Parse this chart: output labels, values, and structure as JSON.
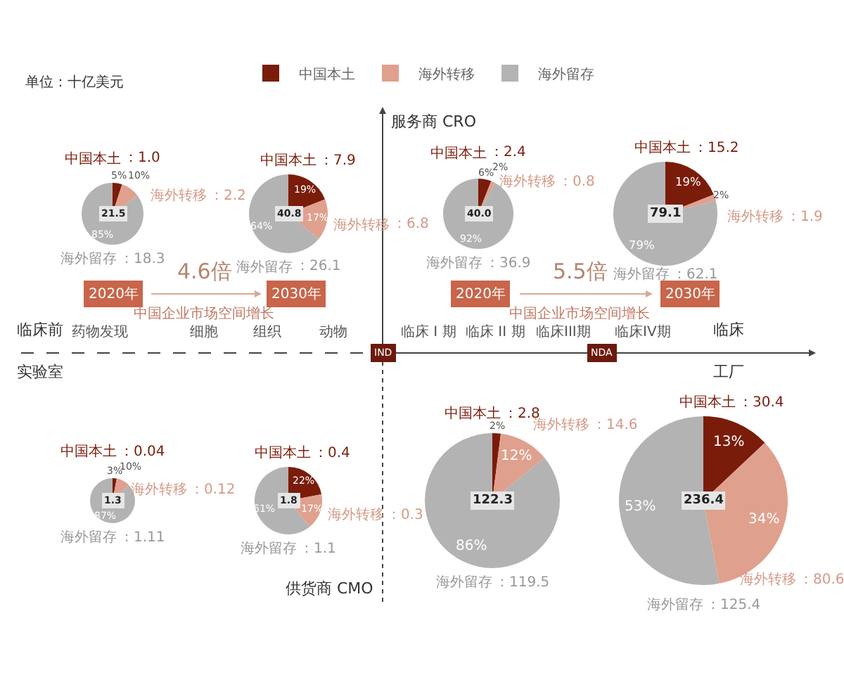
{
  "chart_data": [
    {
      "type": "other",
      "title": "单位：十亿美元",
      "annotations": [
        "服务商 CRO",
        "供货商 CMO",
        "临床前",
        "实验室",
        "临床",
        "工厂",
        "药物发现",
        "细胞",
        "组织",
        "动物",
        "临床 I 期",
        "临床 II 期",
        "临床III期",
        "临床IV期",
        "2020年",
        "2030年",
        "4.6倍",
        "中国企业市场空间增长",
        "2020年",
        "2030年",
        "5.5倍",
        "中国企业市场空间增长",
        "IND",
        "NDA"
      ]
    },
    {
      "type": "pie",
      "categories": [
        "中国本土",
        "海外转移",
        "海外留存"
      ],
      "values": [
        5,
        10,
        85
      ],
      "colors": [
        "#7a1c0a",
        "#e0a08e",
        "#b3b3b3"
      ],
      "value_labels": [
        "5%",
        "10%",
        "85%"
      ],
      "annotations": [
        "21.5",
        "：1.0",
        "：2.2",
        "：18.3"
      ],
      "legend": "top"
    },
    {
      "type": "pie",
      "categories": [
        "中国本土",
        "海外转移",
        "海外留存"
      ],
      "values": [
        19,
        17,
        64
      ],
      "colors": [
        "#7a1c0a",
        "#e0a08e",
        "#b3b3b3"
      ],
      "value_labels": [
        "19%",
        "17%",
        "64%"
      ],
      "annotations": [
        "40.8",
        "：7.9",
        "：6.8",
        "：26.1"
      ]
    },
    {
      "type": "pie",
      "categories": [
        "中国本土",
        "海外转移",
        "海外留存"
      ],
      "values": [
        6,
        2,
        92
      ],
      "colors": [
        "#7a1c0a",
        "#e0a08e",
        "#b3b3b3"
      ],
      "value_labels": [
        "6%",
        "2%",
        "92%"
      ],
      "annotations": [
        "40.0",
        "：2.4",
        "：0.8",
        "：36.9"
      ]
    },
    {
      "type": "pie",
      "categories": [
        "中国本土",
        "海外转移",
        "海外留存"
      ],
      "values": [
        19,
        2,
        79
      ],
      "colors": [
        "#7a1c0a",
        "#e0a08e",
        "#b3b3b3"
      ],
      "value_labels": [
        "19%",
        "2%",
        "79%"
      ],
      "annotations": [
        "79.1",
        "：15.2",
        "：1.9",
        "：62.1"
      ]
    },
    {
      "type": "pie",
      "categories": [
        "中国本土",
        "海外转移",
        "海外留存"
      ],
      "values": [
        3,
        10,
        87
      ],
      "colors": [
        "#7a1c0a",
        "#e0a08e",
        "#b3b3b3"
      ],
      "value_labels": [
        "3%",
        "10%",
        "87%"
      ],
      "annotations": [
        "1.3",
        "：0.04",
        "：0.12",
        "：1.11"
      ]
    },
    {
      "type": "pie",
      "categories": [
        "中国本土",
        "海外转移",
        "海外留存"
      ],
      "values": [
        22,
        17,
        61
      ],
      "colors": [
        "#7a1c0a",
        "#e0a08e",
        "#b3b3b3"
      ],
      "value_labels": [
        "22%",
        "17%",
        "61%"
      ],
      "annotations": [
        "1.8",
        "：0.4",
        "：0.3",
        "：1.1"
      ]
    },
    {
      "type": "pie",
      "categories": [
        "中国本土",
        "海外转移",
        "海外留存"
      ],
      "values": [
        2,
        12,
        86
      ],
      "colors": [
        "#7a1c0a",
        "#e0a08e",
        "#b3b3b3"
      ],
      "value_labels": [
        "2%",
        "12%",
        "86%"
      ],
      "annotations": [
        "122.3",
        "：2.8",
        "：14.6",
        "：119.5"
      ]
    },
    {
      "type": "pie",
      "categories": [
        "中国本土",
        "海外转移",
        "海外留存"
      ],
      "values": [
        13,
        34,
        53
      ],
      "colors": [
        "#7a1c0a",
        "#e0a08e",
        "#b3b3b3"
      ],
      "value_labels": [
        "13%",
        "34%",
        "53%"
      ],
      "annotations": [
        "236.4",
        "：30.4",
        "：80.6",
        "：125.4"
      ]
    }
  ]
}
